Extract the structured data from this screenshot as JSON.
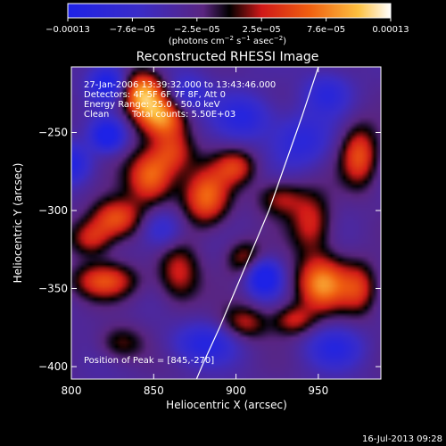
{
  "chart_data": {
    "type": "heatmap",
    "title": "Reconstructed RHESSI Image",
    "xlabel": "Heliocentric X (arcsec)",
    "ylabel": "Heliocentric Y (arcsec)",
    "xlim": [
      800,
      988
    ],
    "ylim": [
      -408,
      -208
    ],
    "x_ticks": [
      800,
      850,
      900,
      950
    ],
    "x_tick_labels": [
      "800",
      "850",
      "900",
      "950"
    ],
    "y_ticks": [
      -400,
      -350,
      -300,
      -250
    ],
    "y_tick_labels": [
      "−400",
      "−350",
      "−300",
      "−250"
    ],
    "colorbar": {
      "range": [
        -0.00013,
        0.00013
      ],
      "tick_labels": [
        "−0.00013",
        "−7.6e−05",
        "−2.5e−05",
        "2.5e−05",
        "7.6e−05",
        "0.00013"
      ],
      "unit_base": "(photons cm",
      "unit_exp1": "−2",
      "unit_mid": " s",
      "unit_exp2": "−1",
      "unit_mid2": " asec",
      "unit_exp3": "−2",
      "unit_end": ")"
    },
    "blobs": [
      {
        "x": 843,
        "y": -225,
        "a": 1.0,
        "sx": 9,
        "sy": 10
      },
      {
        "x": 855,
        "y": -240,
        "a": 0.8,
        "sx": 10,
        "sy": 9
      },
      {
        "x": 848,
        "y": -278,
        "a": 0.85,
        "sx": 10,
        "sy": 12
      },
      {
        "x": 862,
        "y": -262,
        "a": 0.55,
        "sx": 9,
        "sy": 10
      },
      {
        "x": 827,
        "y": -305,
        "a": 0.75,
        "sx": 11,
        "sy": 9
      },
      {
        "x": 812,
        "y": -318,
        "a": 0.55,
        "sx": 9,
        "sy": 8
      },
      {
        "x": 820,
        "y": -345,
        "a": 0.65,
        "sx": 14,
        "sy": 8
      },
      {
        "x": 865,
        "y": -340,
        "a": 0.55,
        "sx": 9,
        "sy": 14
      },
      {
        "x": 882,
        "y": -292,
        "a": 0.8,
        "sx": 10,
        "sy": 13
      },
      {
        "x": 900,
        "y": -272,
        "a": 0.55,
        "sx": 9,
        "sy": 8
      },
      {
        "x": 927,
        "y": -292,
        "a": 0.45,
        "sx": 10,
        "sy": 8
      },
      {
        "x": 946,
        "y": -308,
        "a": 0.55,
        "sx": 9,
        "sy": 14
      },
      {
        "x": 952,
        "y": -347,
        "a": 0.9,
        "sx": 11,
        "sy": 12
      },
      {
        "x": 935,
        "y": -370,
        "a": 0.5,
        "sx": 9,
        "sy": 7
      },
      {
        "x": 975,
        "y": -265,
        "a": 0.7,
        "sx": 8,
        "sy": 14
      },
      {
        "x": 975,
        "y": -350,
        "a": 0.55,
        "sx": 8,
        "sy": 12
      },
      {
        "x": 905,
        "y": -372,
        "a": 0.5,
        "sx": 10,
        "sy": 8
      },
      {
        "x": 905,
        "y": -330,
        "a": 0.45,
        "sx": 8,
        "sy": 8
      },
      {
        "x": 830,
        "y": -385,
        "a": 0.4,
        "sx": 10,
        "sy": 8
      },
      {
        "x": 822,
        "y": -218,
        "a": -0.75,
        "sx": 8,
        "sy": 8
      },
      {
        "x": 822,
        "y": -252,
        "a": -0.85,
        "sx": 7,
        "sy": 7
      },
      {
        "x": 800,
        "y": -270,
        "a": -0.6,
        "sx": 9,
        "sy": 9
      },
      {
        "x": 917,
        "y": -343,
        "a": -0.9,
        "sx": 7,
        "sy": 8
      },
      {
        "x": 905,
        "y": -240,
        "a": -0.55,
        "sx": 12,
        "sy": 10
      },
      {
        "x": 940,
        "y": -255,
        "a": -0.5,
        "sx": 12,
        "sy": 12
      },
      {
        "x": 880,
        "y": -385,
        "a": -0.55,
        "sx": 14,
        "sy": 9
      },
      {
        "x": 855,
        "y": -312,
        "a": -0.5,
        "sx": 9,
        "sy": 9
      },
      {
        "x": 870,
        "y": -225,
        "a": -0.45,
        "sx": 9,
        "sy": 9
      },
      {
        "x": 960,
        "y": -388,
        "a": -0.5,
        "sx": 12,
        "sy": 9
      },
      {
        "x": 955,
        "y": -225,
        "a": -0.45,
        "sx": 10,
        "sy": 9
      }
    ],
    "limb_curve": [
      [
        950,
        -208
      ],
      [
        940,
        -240
      ],
      [
        930,
        -270
      ],
      [
        920,
        -300
      ],
      [
        910,
        -325
      ],
      [
        900,
        -350
      ],
      [
        890,
        -375
      ],
      [
        880,
        -398
      ],
      [
        876,
        -408
      ]
    ],
    "annotations": {
      "time_range": "27-Jan-2006 13:39:32.000 to 13:43:46.000",
      "detectors": "Detectors: 4F 5F 6F 7F 8F, Att 0",
      "energy": "Energy Range: 25.0 - 50.0 keV",
      "method": "Clean",
      "total_counts": "Total counts: 5.50E+03",
      "peak": "Position of Peak = [845,-270]"
    },
    "footer_timestamp": "16-Jul-2013 09:28"
  }
}
